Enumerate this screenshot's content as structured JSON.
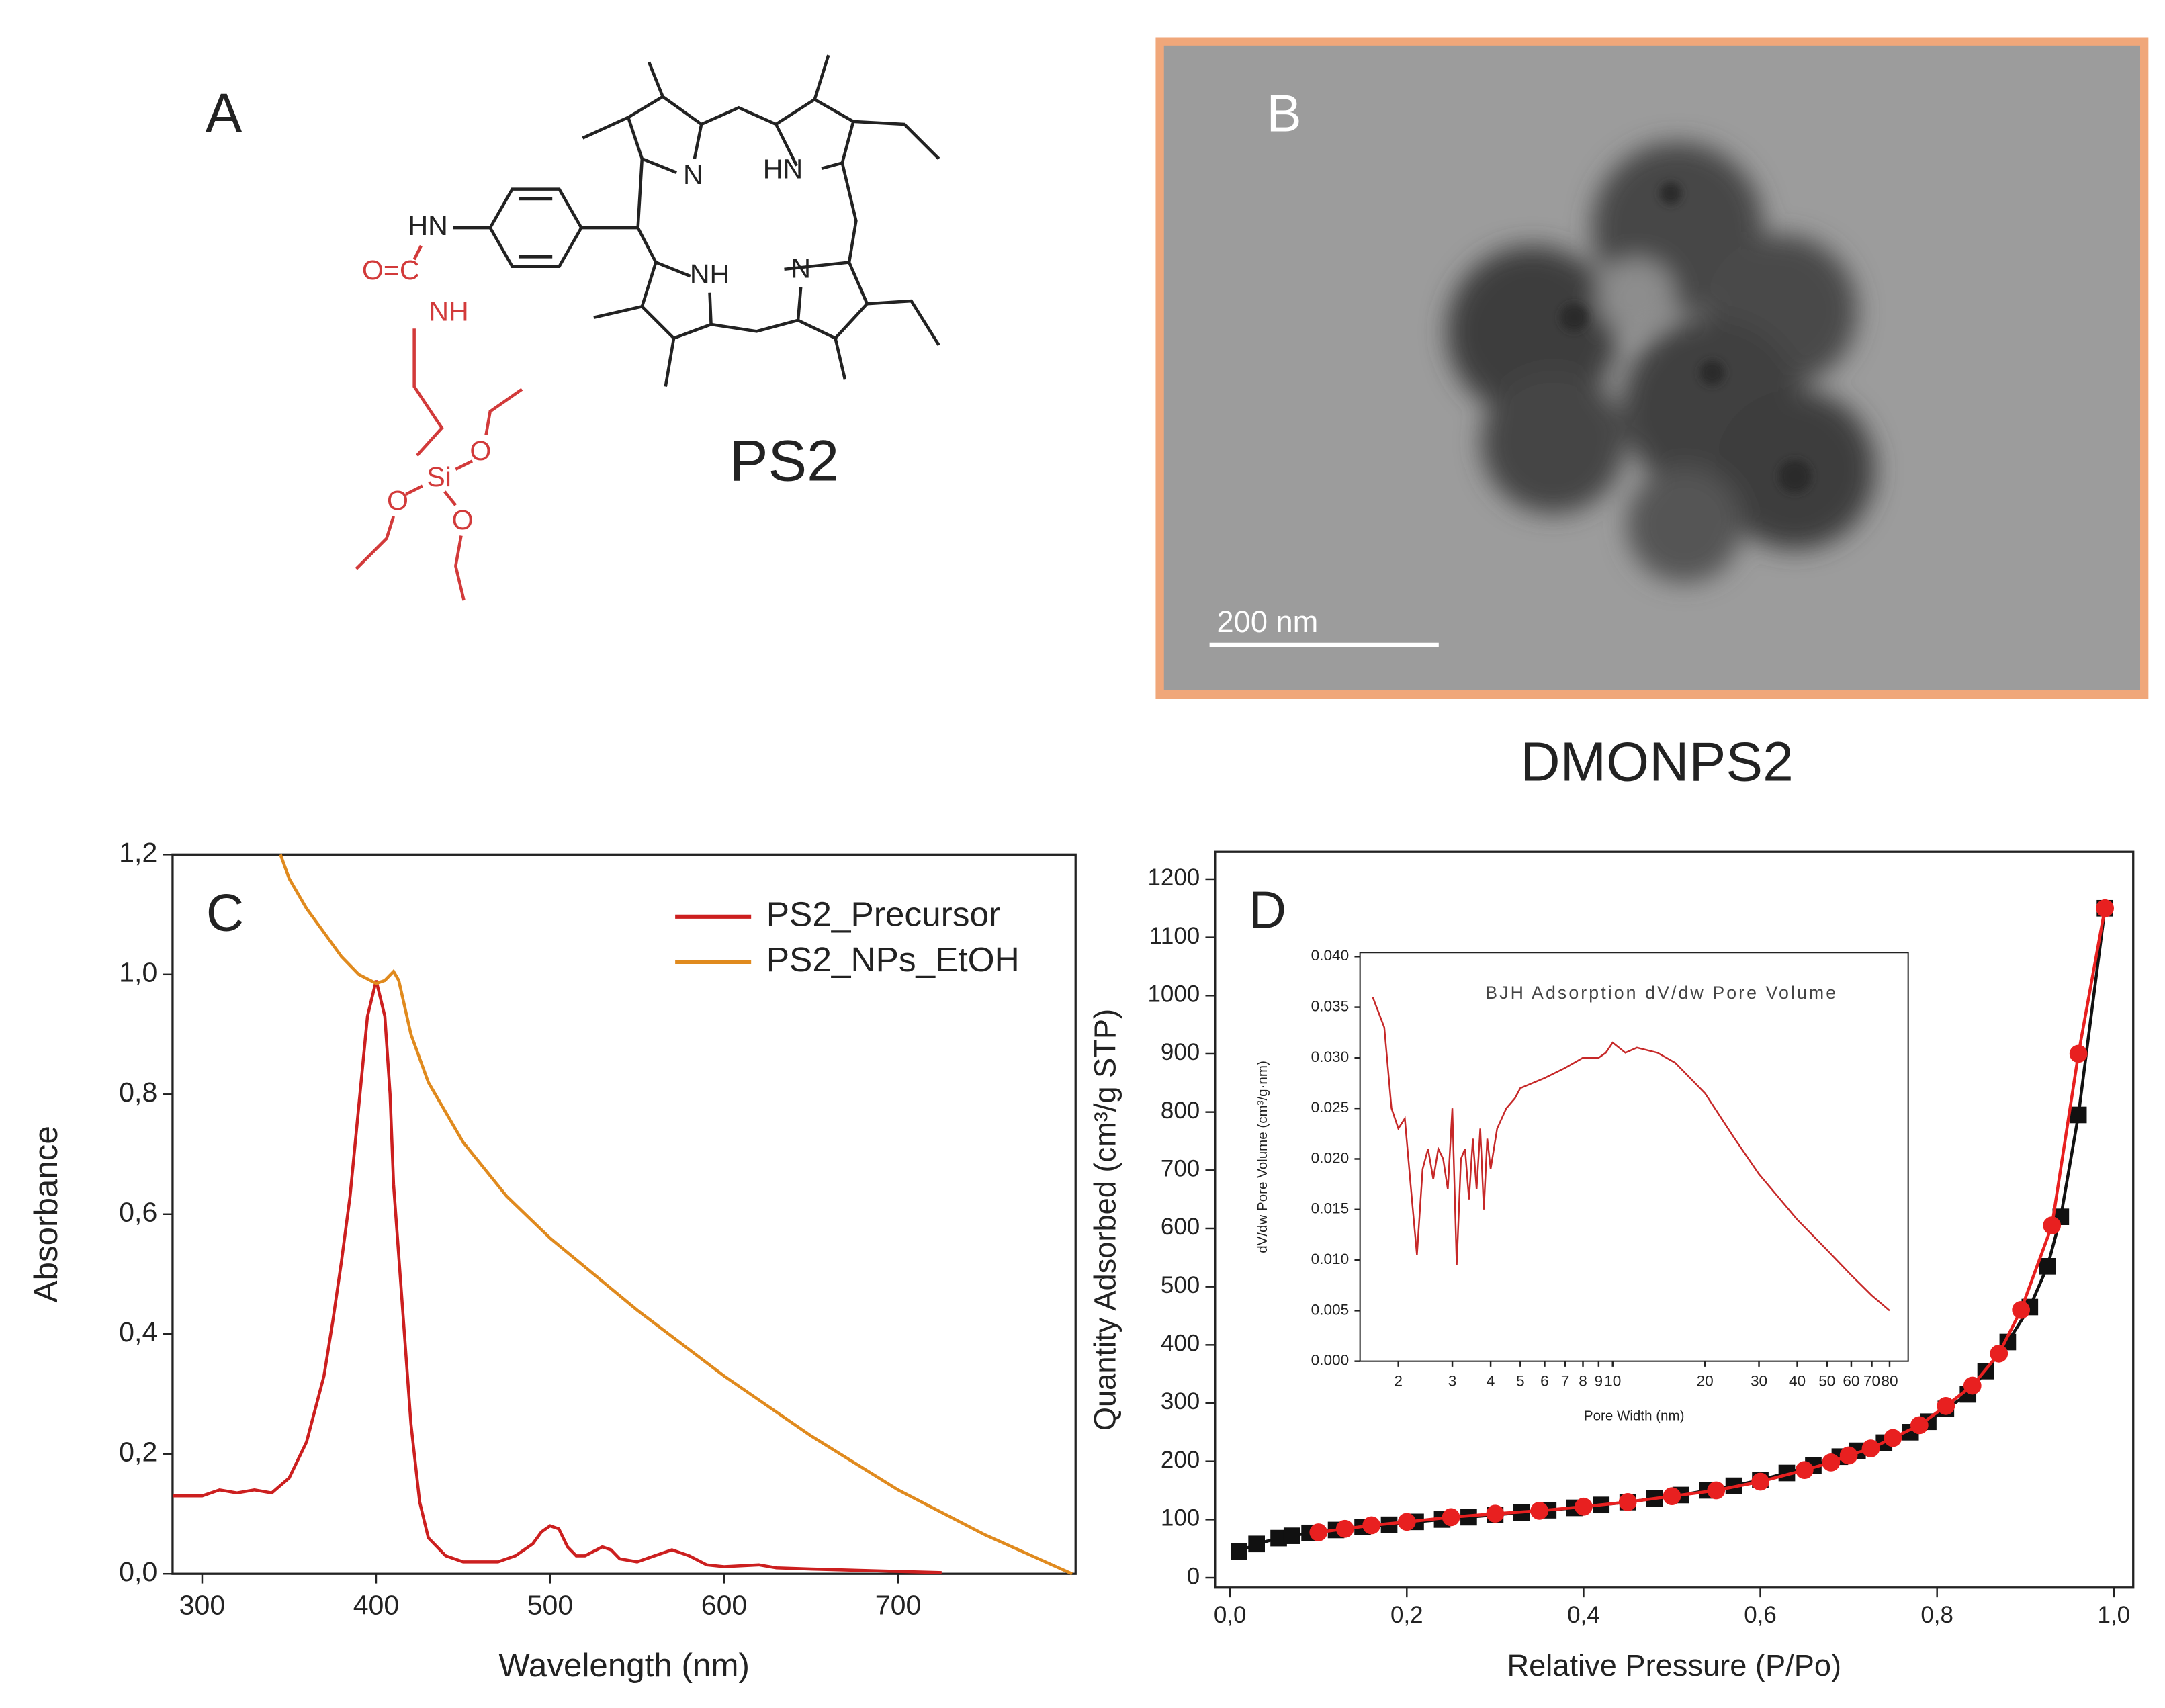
{
  "panel_a": {
    "label": "A",
    "name": "PS2",
    "atoms": [
      "HN",
      "O=C",
      "NH",
      "O",
      "Si",
      "O",
      "O",
      "N",
      "HN",
      "NH",
      "N"
    ]
  },
  "panel_b": {
    "label": "B",
    "scale_bar": "200 nm",
    "caption": "DMONPS2"
  },
  "chart_data": [
    {
      "type": "line",
      "panel_label": "C",
      "x_label": "Wavelength (nm)",
      "y_label": "Absorbance",
      "xlim": [
        283,
        802
      ],
      "ylim": [
        0,
        1.2
      ],
      "xticks": [
        300,
        400,
        500,
        600,
        700
      ],
      "yticks": [
        {
          "value": 0,
          "label": "0,0"
        },
        {
          "value": 0.2,
          "label": "0,2"
        },
        {
          "value": 0.4,
          "label": "0,4"
        },
        {
          "value": 0.6,
          "label": "0,6"
        },
        {
          "value": 0.8,
          "label": "0,8"
        },
        {
          "value": 1.0,
          "label": "1,0"
        },
        {
          "value": 1.2,
          "label": "1,2"
        }
      ],
      "legend": "upper right",
      "series": [
        {
          "name": "PS2_Precursor",
          "color": "#cc1f1f",
          "x": [
            283,
            290,
            300,
            310,
            320,
            330,
            340,
            350,
            360,
            370,
            375,
            380,
            385,
            390,
            395,
            400,
            405,
            408,
            410,
            415,
            420,
            425,
            430,
            440,
            450,
            460,
            470,
            480,
            490,
            495,
            500,
            505,
            510,
            515,
            520,
            530,
            535,
            540,
            550,
            560,
            570,
            580,
            590,
            600,
            620,
            630,
            650,
            700,
            725
          ],
          "values": [
            0.13,
            0.13,
            0.13,
            0.14,
            0.135,
            0.14,
            0.135,
            0.16,
            0.22,
            0.33,
            0.42,
            0.52,
            0.63,
            0.78,
            0.93,
            0.99,
            0.93,
            0.8,
            0.65,
            0.45,
            0.25,
            0.12,
            0.06,
            0.03,
            0.02,
            0.02,
            0.02,
            0.03,
            0.05,
            0.07,
            0.08,
            0.075,
            0.045,
            0.03,
            0.03,
            0.045,
            0.04,
            0.025,
            0.02,
            0.03,
            0.04,
            0.03,
            0.015,
            0.012,
            0.015,
            0.01,
            0.008,
            0.004,
            0.002
          ]
        },
        {
          "name": "PS2_NPs_EtOH",
          "color": "#e08a1e",
          "x": [
            345,
            350,
            360,
            370,
            380,
            390,
            400,
            405,
            410,
            413,
            420,
            430,
            450,
            475,
            500,
            550,
            600,
            650,
            700,
            750,
            800
          ],
          "values": [
            1.2,
            1.16,
            1.11,
            1.07,
            1.03,
            1.0,
            0.985,
            0.99,
            1.005,
            0.99,
            0.9,
            0.82,
            0.72,
            0.63,
            0.56,
            0.44,
            0.33,
            0.23,
            0.14,
            0.065,
            0.0
          ]
        }
      ]
    },
    {
      "type": "line",
      "panel_label": "D",
      "x_label": "Relative Pressure (P/Po)",
      "y_label": "Quantity Adsorbed (cm³/g STP)",
      "xlim": [
        -0.017,
        1.022
      ],
      "ylim": [
        -17,
        1247
      ],
      "xticks": [
        {
          "value": 0,
          "label": "0,0"
        },
        {
          "value": 0.2,
          "label": "0,2"
        },
        {
          "value": 0.4,
          "label": "0,4"
        },
        {
          "value": 0.6,
          "label": "0,6"
        },
        {
          "value": 0.8,
          "label": "0,8"
        },
        {
          "value": 1.0,
          "label": "1,0"
        }
      ],
      "yticks": [
        0,
        100,
        200,
        300,
        400,
        500,
        600,
        700,
        800,
        900,
        1000,
        1100,
        1200
      ],
      "series": [
        {
          "color": "#111111",
          "marker": "square",
          "x": [
            0.01,
            0.03,
            0.055,
            0.07,
            0.09,
            0.12,
            0.15,
            0.18,
            0.21,
            0.24,
            0.27,
            0.3,
            0.33,
            0.36,
            0.39,
            0.42,
            0.45,
            0.48,
            0.51,
            0.54,
            0.57,
            0.6,
            0.63,
            0.66,
            0.69,
            0.71,
            0.74,
            0.77,
            0.79,
            0.81,
            0.835,
            0.855,
            0.88,
            0.905,
            0.925,
            0.94,
            0.96,
            0.99
          ],
          "values": [
            45,
            58,
            68,
            72,
            77,
            82,
            87,
            91,
            96,
            100,
            104,
            108,
            112,
            116,
            120,
            125,
            130,
            136,
            142,
            150,
            158,
            168,
            180,
            193,
            208,
            218,
            232,
            250,
            268,
            290,
            315,
            355,
            405,
            465,
            535,
            620,
            795,
            1150
          ]
        },
        {
          "color": "#e82020",
          "marker": "circle",
          "x": [
            0.1,
            0.13,
            0.16,
            0.2,
            0.25,
            0.3,
            0.35,
            0.4,
            0.45,
            0.5,
            0.55,
            0.6,
            0.65,
            0.68,
            0.7,
            0.725,
            0.75,
            0.78,
            0.81,
            0.84,
            0.87,
            0.895,
            0.93,
            0.96,
            0.99
          ],
          "values": [
            78,
            84,
            90,
            96,
            104,
            110,
            115,
            122,
            130,
            140,
            150,
            165,
            185,
            198,
            210,
            222,
            240,
            262,
            295,
            330,
            385,
            460,
            605,
            900,
            1150
          ]
        }
      ]
    },
    {
      "type": "line",
      "title": "BJH Adsorption dV/dw Pore Volume",
      "x_label": "Pore Width (nm)",
      "y_label": "dV/dw Pore Volume (cm³/g·nm)",
      "xscale": "log",
      "xlim": [
        1.5,
        92
      ],
      "ylim": [
        0,
        0.0404
      ],
      "xticks": [
        2,
        3,
        4,
        5,
        6,
        7,
        8,
        9,
        10,
        20,
        30,
        40,
        50,
        60,
        70,
        80
      ],
      "yticks": [
        {
          "value": 0,
          "label": "0.000"
        },
        {
          "value": 0.005,
          "label": "0.005"
        },
        {
          "value": 0.01,
          "label": "0.010"
        },
        {
          "value": 0.015,
          "label": "0.015"
        },
        {
          "value": 0.02,
          "label": "0.020"
        },
        {
          "value": 0.025,
          "label": "0.025"
        },
        {
          "value": 0.03,
          "label": "0.030"
        },
        {
          "value": 0.035,
          "label": "0.035"
        },
        {
          "value": 0.04,
          "label": "0.040"
        }
      ],
      "series": [
        {
          "color": "#c62828",
          "x": [
            1.65,
            1.8,
            1.9,
            2.0,
            2.1,
            2.2,
            2.3,
            2.4,
            2.5,
            2.6,
            2.7,
            2.8,
            2.9,
            3.0,
            3.1,
            3.2,
            3.3,
            3.4,
            3.5,
            3.6,
            3.7,
            3.8,
            3.9,
            4.0,
            4.2,
            4.5,
            4.8,
            5,
            6,
            7,
            8,
            9,
            9.5,
            10,
            11,
            12,
            14,
            16,
            20,
            25,
            30,
            40,
            50,
            60,
            70,
            80
          ],
          "values": [
            0.036,
            0.033,
            0.025,
            0.023,
            0.024,
            0.017,
            0.0105,
            0.019,
            0.021,
            0.018,
            0.021,
            0.02,
            0.017,
            0.025,
            0.0095,
            0.02,
            0.021,
            0.016,
            0.022,
            0.017,
            0.023,
            0.015,
            0.022,
            0.019,
            0.023,
            0.025,
            0.026,
            0.027,
            0.028,
            0.029,
            0.03,
            0.03,
            0.0305,
            0.0315,
            0.0305,
            0.031,
            0.0305,
            0.0295,
            0.0265,
            0.022,
            0.0185,
            0.014,
            0.011,
            0.0085,
            0.0065,
            0.005
          ]
        }
      ]
    }
  ]
}
